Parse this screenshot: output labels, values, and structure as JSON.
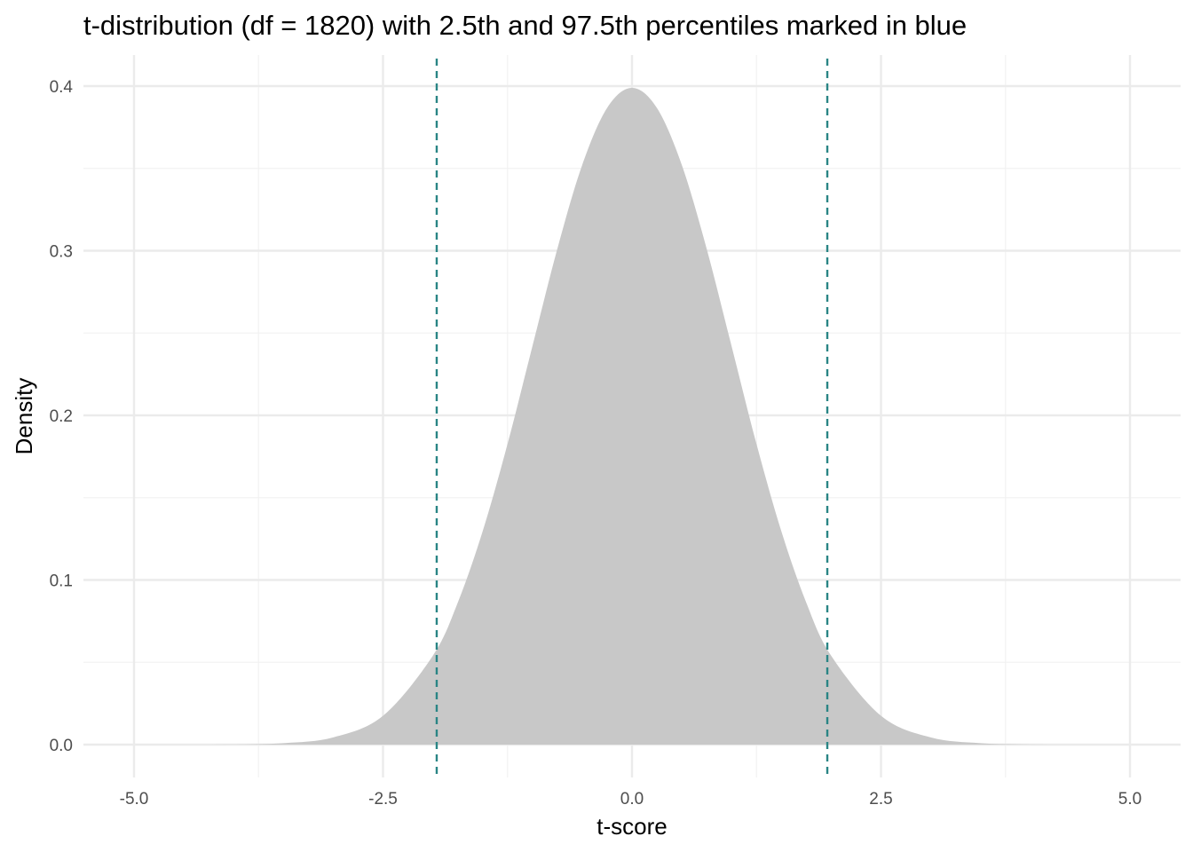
{
  "chart_data": {
    "type": "area",
    "title": "t-distribution (df = 1820) with 2.5th and 97.5th percentiles marked in blue",
    "xlabel": "t-score",
    "ylabel": "Density",
    "xlim": [
      -5.0,
      5.0
    ],
    "ylim": [
      0.0,
      0.4
    ],
    "x_ticks": [
      -5.0,
      -2.5,
      0.0,
      2.5,
      5.0
    ],
    "x_tick_labels": [
      "-5.0",
      "-2.5",
      "0.0",
      "2.5",
      "5.0"
    ],
    "y_ticks": [
      0.0,
      0.1,
      0.2,
      0.3,
      0.4
    ],
    "y_tick_labels": [
      "0.0",
      "0.1",
      "0.2",
      "0.3",
      "0.4"
    ],
    "grid": true,
    "degrees_of_freedom": 1820,
    "series": [
      {
        "x": [
          -5.0,
          -4.5,
          -4.0,
          -3.5,
          -3.0,
          -2.5,
          -2.0,
          -1.75,
          -1.5,
          -1.25,
          -1.0,
          -0.75,
          -0.5,
          -0.25,
          0.0,
          0.25,
          0.5,
          0.75,
          1.0,
          1.25,
          1.5,
          1.75,
          2.0,
          2.5,
          3.0,
          3.5,
          4.0,
          4.5,
          5.0
        ],
        "y": [
          0.0,
          0.0,
          0.0001,
          0.0009,
          0.0044,
          0.0175,
          0.054,
          0.0862,
          0.1295,
          0.1826,
          0.242,
          0.3011,
          0.3521,
          0.3867,
          0.3989,
          0.3867,
          0.3521,
          0.3011,
          0.242,
          0.1826,
          0.1295,
          0.0862,
          0.054,
          0.0175,
          0.0044,
          0.0009,
          0.0001,
          0.0,
          0.0
        ]
      }
    ],
    "percentile_lines": [
      {
        "percentile": "2.5th",
        "x": -1.961
      },
      {
        "percentile": "97.5th",
        "x": 1.961
      }
    ],
    "colors": {
      "fill": "#c8c8c8",
      "percentile_line": "#2a8585",
      "grid_major": "#ebebeb",
      "grid_minor": "#f2f2f2"
    }
  }
}
